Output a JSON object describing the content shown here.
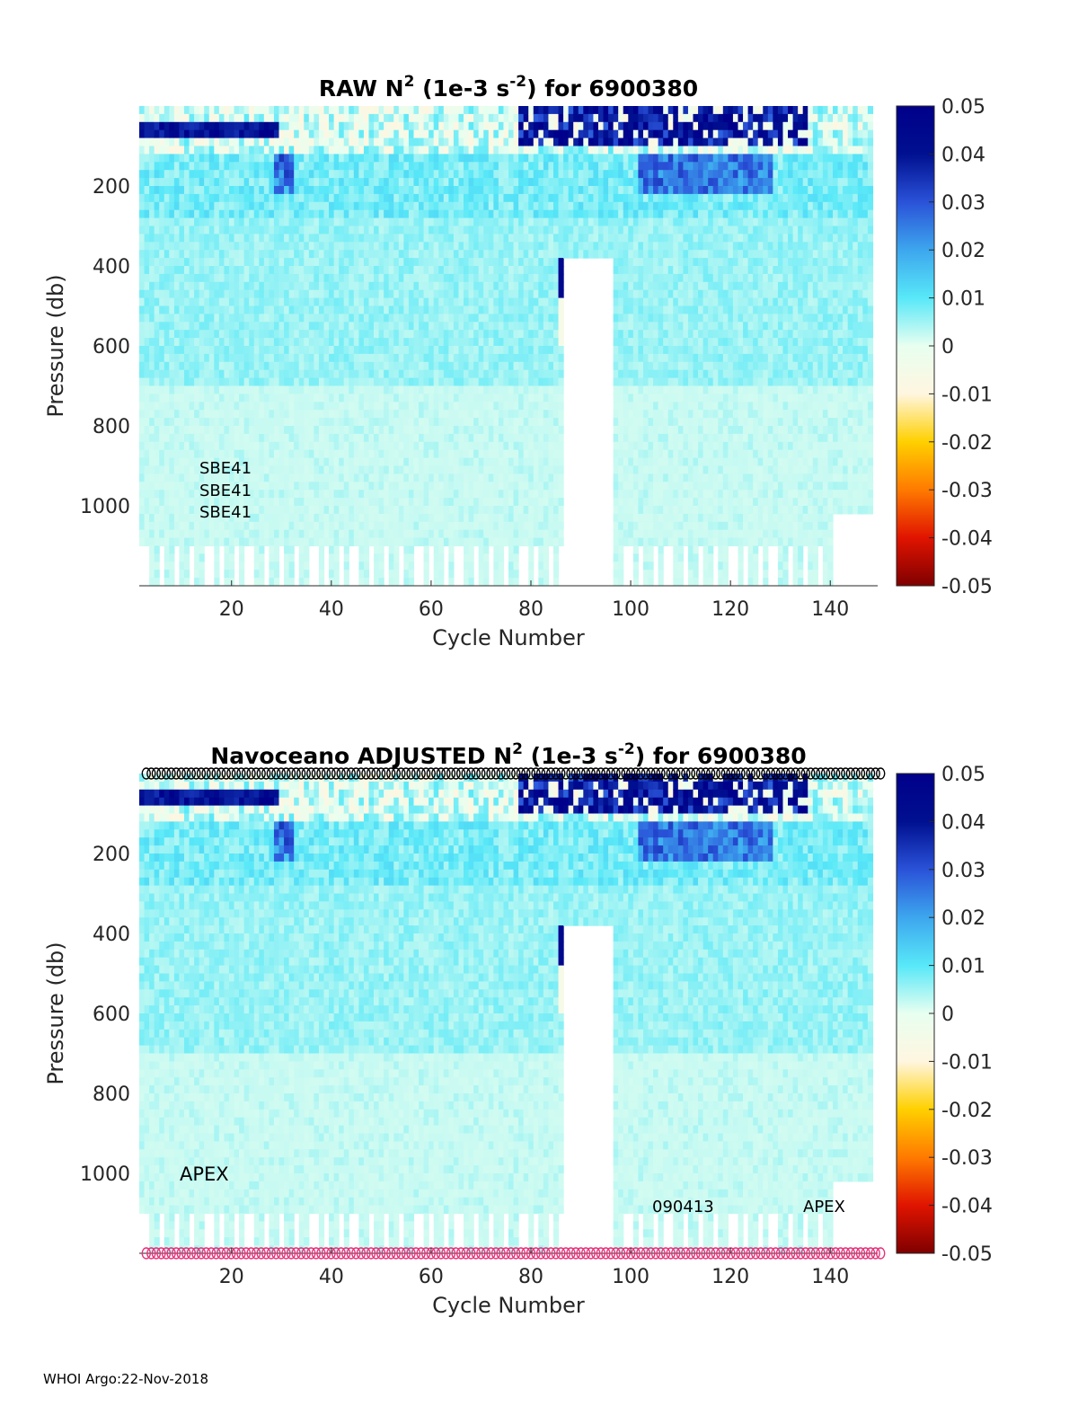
{
  "footer": "WHOI Argo:22-Nov-2018",
  "colorbar": {
    "ticks": [
      "0.05",
      "0.04",
      "0.03",
      "0.02",
      "0.01",
      "0",
      "-0.01",
      "-0.02",
      "-0.03",
      "-0.04",
      "-0.05"
    ],
    "stops": [
      "#7f0000",
      "#e01400",
      "#ff7a00",
      "#ffd000",
      "#fff6e0",
      "#e8fff0",
      "#58e8f8",
      "#3da6ee",
      "#2a52d8",
      "#001090",
      "#00008a"
    ]
  },
  "chart_data": [
    {
      "type": "heatmap",
      "title_prefix": "RAW N",
      "title_sup1": "2",
      "title_mid": " (1e-3 s",
      "title_sup2": "-2",
      "title_suffix": ") for 6900380",
      "xlabel": "Cycle Number",
      "ylabel": "Pressure (db)",
      "xlim": [
        2,
        149
      ],
      "ylim": [
        1200,
        0
      ],
      "xticks": [
        "20",
        "40",
        "60",
        "80",
        "100",
        "120",
        "140"
      ],
      "yticks": [
        "200",
        "400",
        "600",
        "800",
        "1000"
      ],
      "clim": [
        -0.05,
        0.05
      ],
      "sensor_labels": [
        "SBE41",
        "SBE41",
        "SBE41"
      ],
      "annotations": [],
      "flag_markers": false
    },
    {
      "type": "heatmap",
      "title_prefix": "Navoceano  ADJUSTED N",
      "title_sup1": "2",
      "title_mid": " (1e-3 s",
      "title_sup2": "-2",
      "title_suffix": ") for 6900380",
      "xlabel": "Cycle Number",
      "ylabel": "Pressure (db)",
      "xlim": [
        2,
        149
      ],
      "ylim": [
        1200,
        0
      ],
      "xticks": [
        "20",
        "40",
        "60",
        "80",
        "100",
        "120",
        "140"
      ],
      "yticks": [
        "200",
        "400",
        "600",
        "800",
        "1000"
      ],
      "clim": [
        -0.05,
        0.05
      ],
      "sensor_labels": [],
      "annotations": [
        "APEX",
        "090413",
        "APEX"
      ],
      "flag_markers": true
    }
  ]
}
